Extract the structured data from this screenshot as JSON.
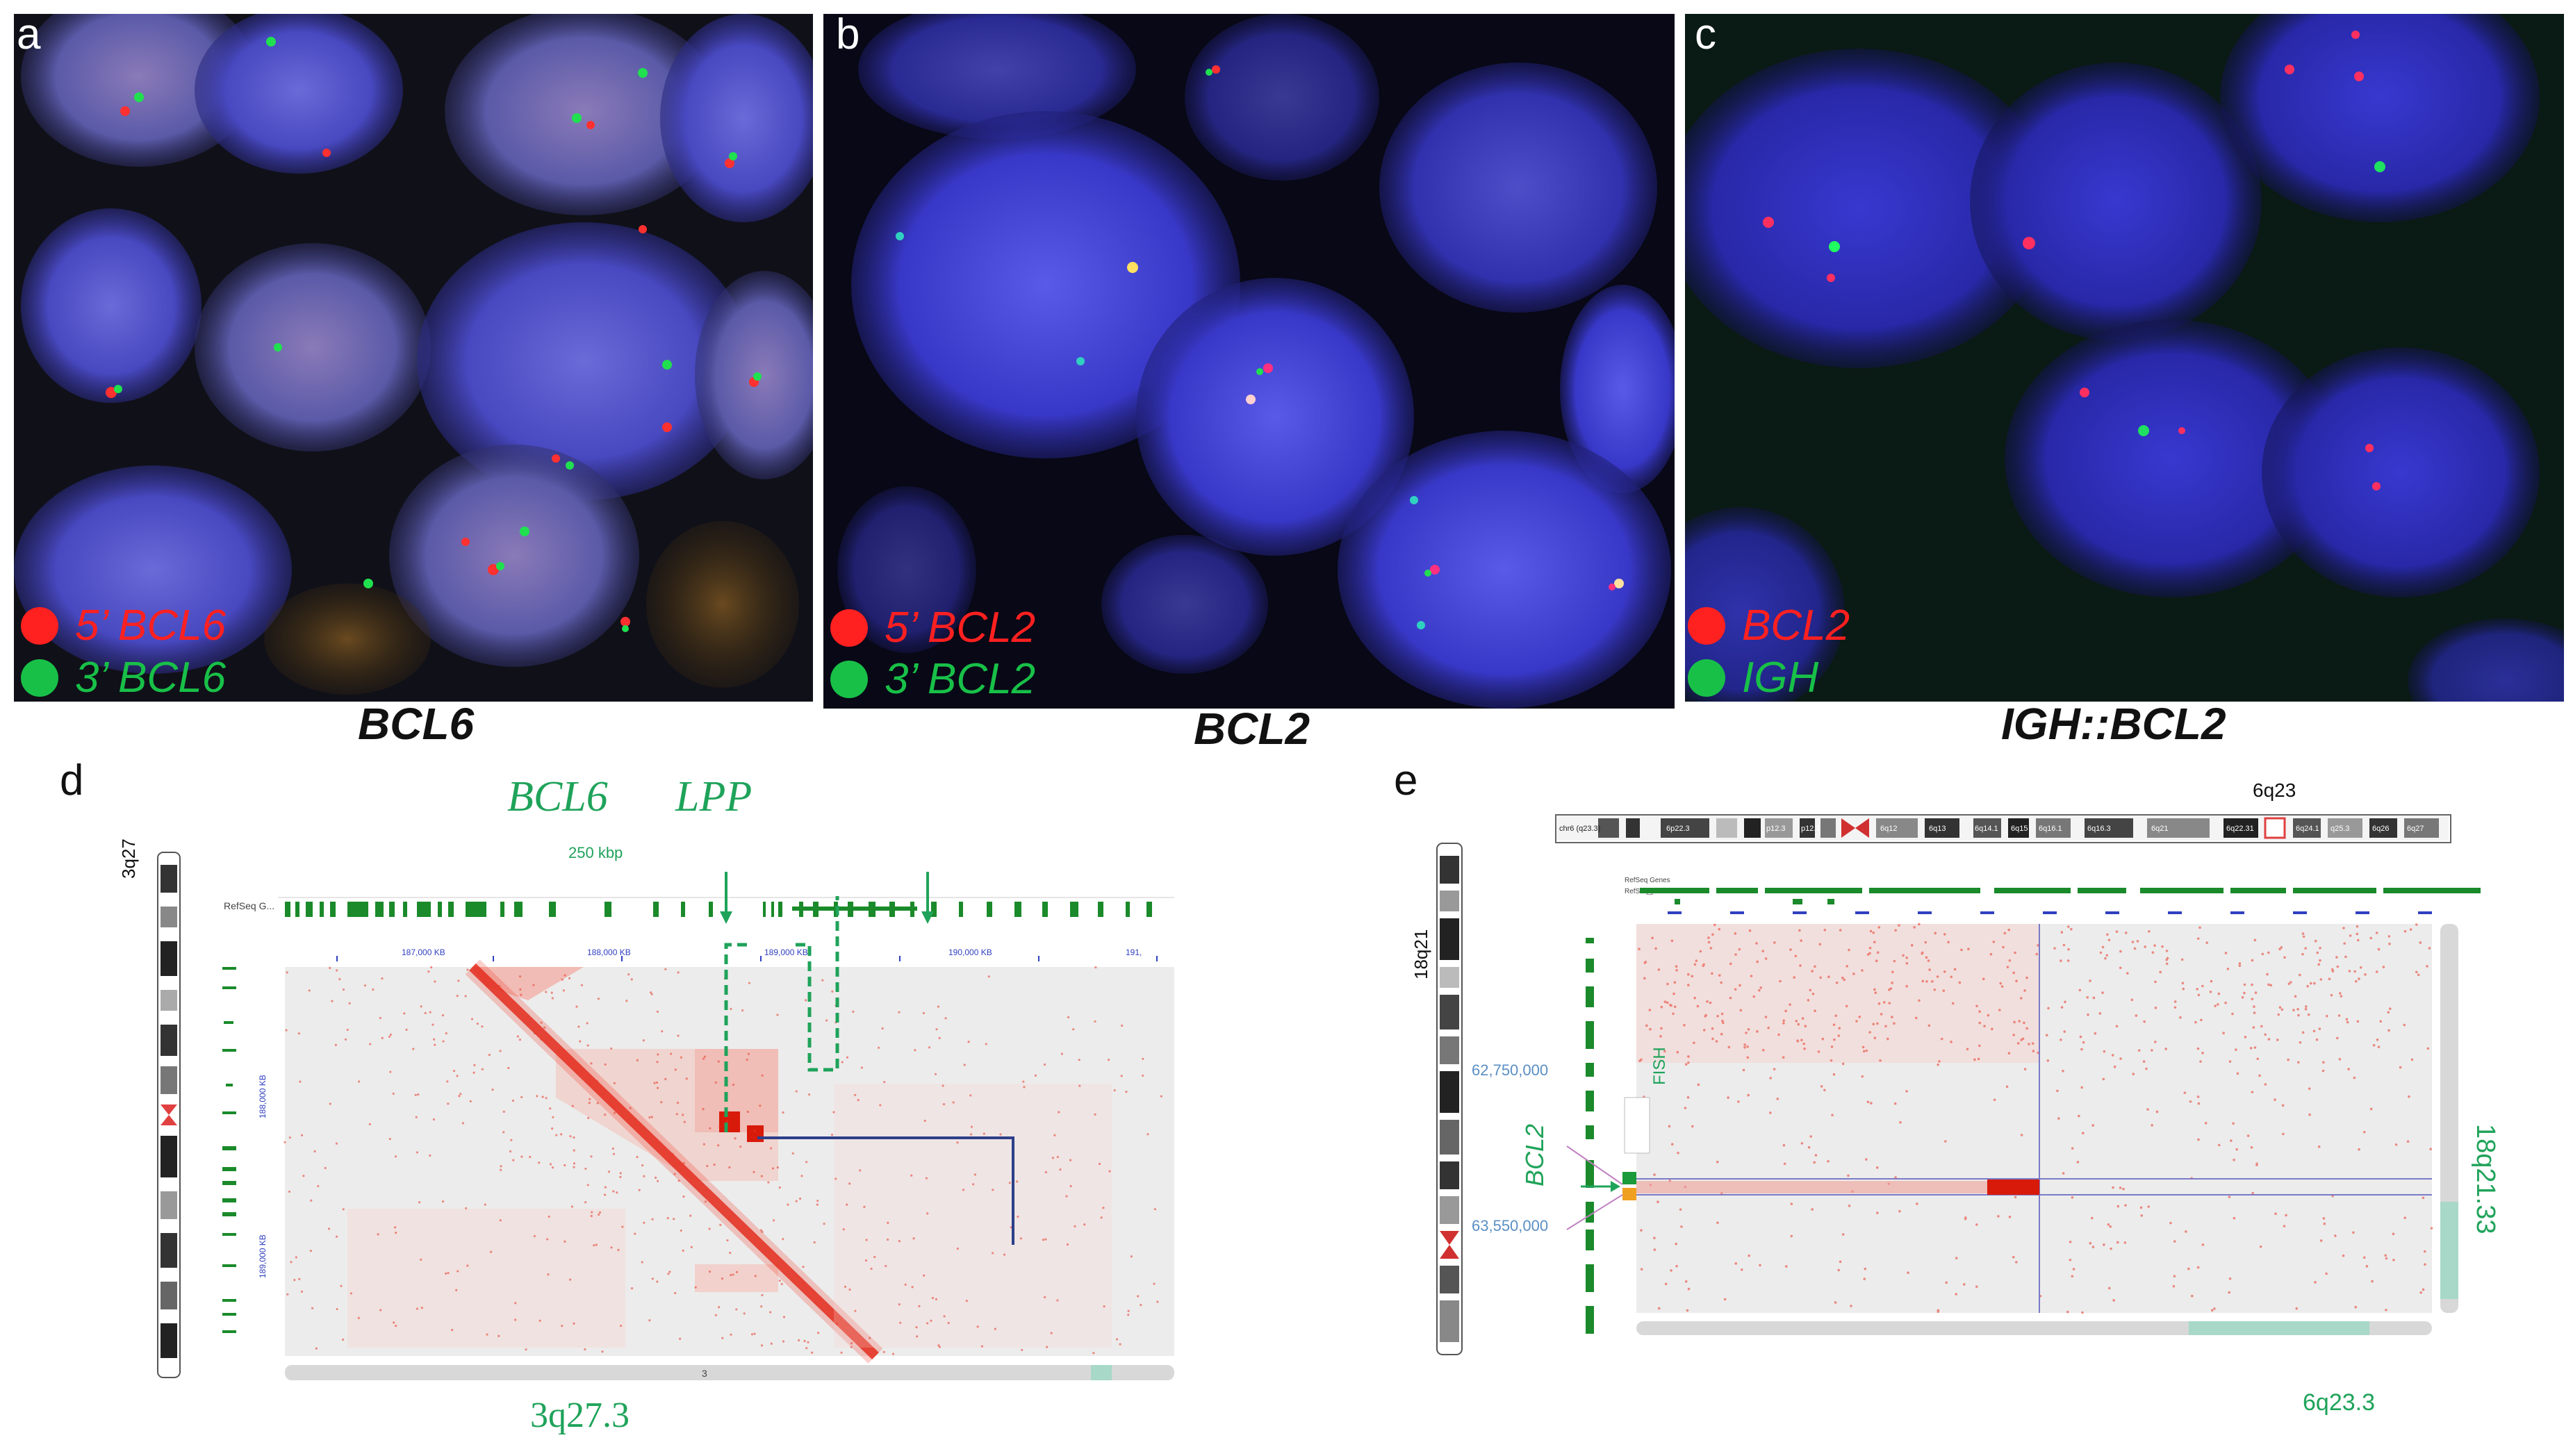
{
  "panels": {
    "a": {
      "letter": "a",
      "legend": [
        {
          "text": "5’ BCL6",
          "color": "#ff2020"
        },
        {
          "text": "3’ BCL6",
          "color": "#18c048"
        }
      ],
      "caption": "BCL6"
    },
    "b": {
      "letter": "b",
      "legend": [
        {
          "text": "5’ BCL2",
          "color": "#ff2020"
        },
        {
          "text": "3’ BCL2",
          "color": "#18c048"
        }
      ],
      "caption": "BCL2"
    },
    "c": {
      "letter": "c",
      "legend": [
        {
          "text": "BCL2",
          "color": "#ff2020"
        },
        {
          "text": "IGH",
          "color": "#18c048"
        }
      ],
      "caption": "IGH::BCL2"
    },
    "d": {
      "letter": "d",
      "chromosome_label": "3q27",
      "gene1": "BCL6",
      "gene2": "LPP",
      "distance": "250 kbp",
      "region": "3q27.3",
      "track_label": "RefSeq G...",
      "axis_ticks": [
        "187,000 KB",
        "188,000 KB",
        "189,000 KB",
        "190,000 KB",
        "191,"
      ],
      "y_ticks": [
        "188,000 KB",
        "189,000 KB"
      ],
      "scroll_label": "3"
    },
    "e": {
      "letter": "e",
      "top_label": "6q23",
      "chromosome_label": "18q21",
      "ideogram_bands": [
        "chr6 (q23.3)",
        "6p22.3",
        "p12.3",
        "p12.1",
        "6q12",
        "6q13",
        "6q14.1",
        "6q15",
        "6q16.1",
        "6q16.3",
        "6q21",
        "6q22.31",
        "6q24.1",
        "q25.3",
        "6q26",
        "6q27"
      ],
      "gene": "BCL2",
      "fish_label": "FISH",
      "coord_top": "62,750,000",
      "coord_bottom": "63,550,000",
      "region_right": "18q21.33",
      "region_bottom": "6q23.3",
      "track_labels": [
        "RefSeq Genes",
        "RefSeq_predi..."
      ]
    }
  },
  "colors": {
    "fish_red": "#ff2020",
    "fish_green": "#18c048",
    "hic_red": "#e83a2a",
    "label_green": "#1fa35a",
    "coord_blue": "#5a8fc4",
    "box_blue": "#2d3f8a"
  }
}
